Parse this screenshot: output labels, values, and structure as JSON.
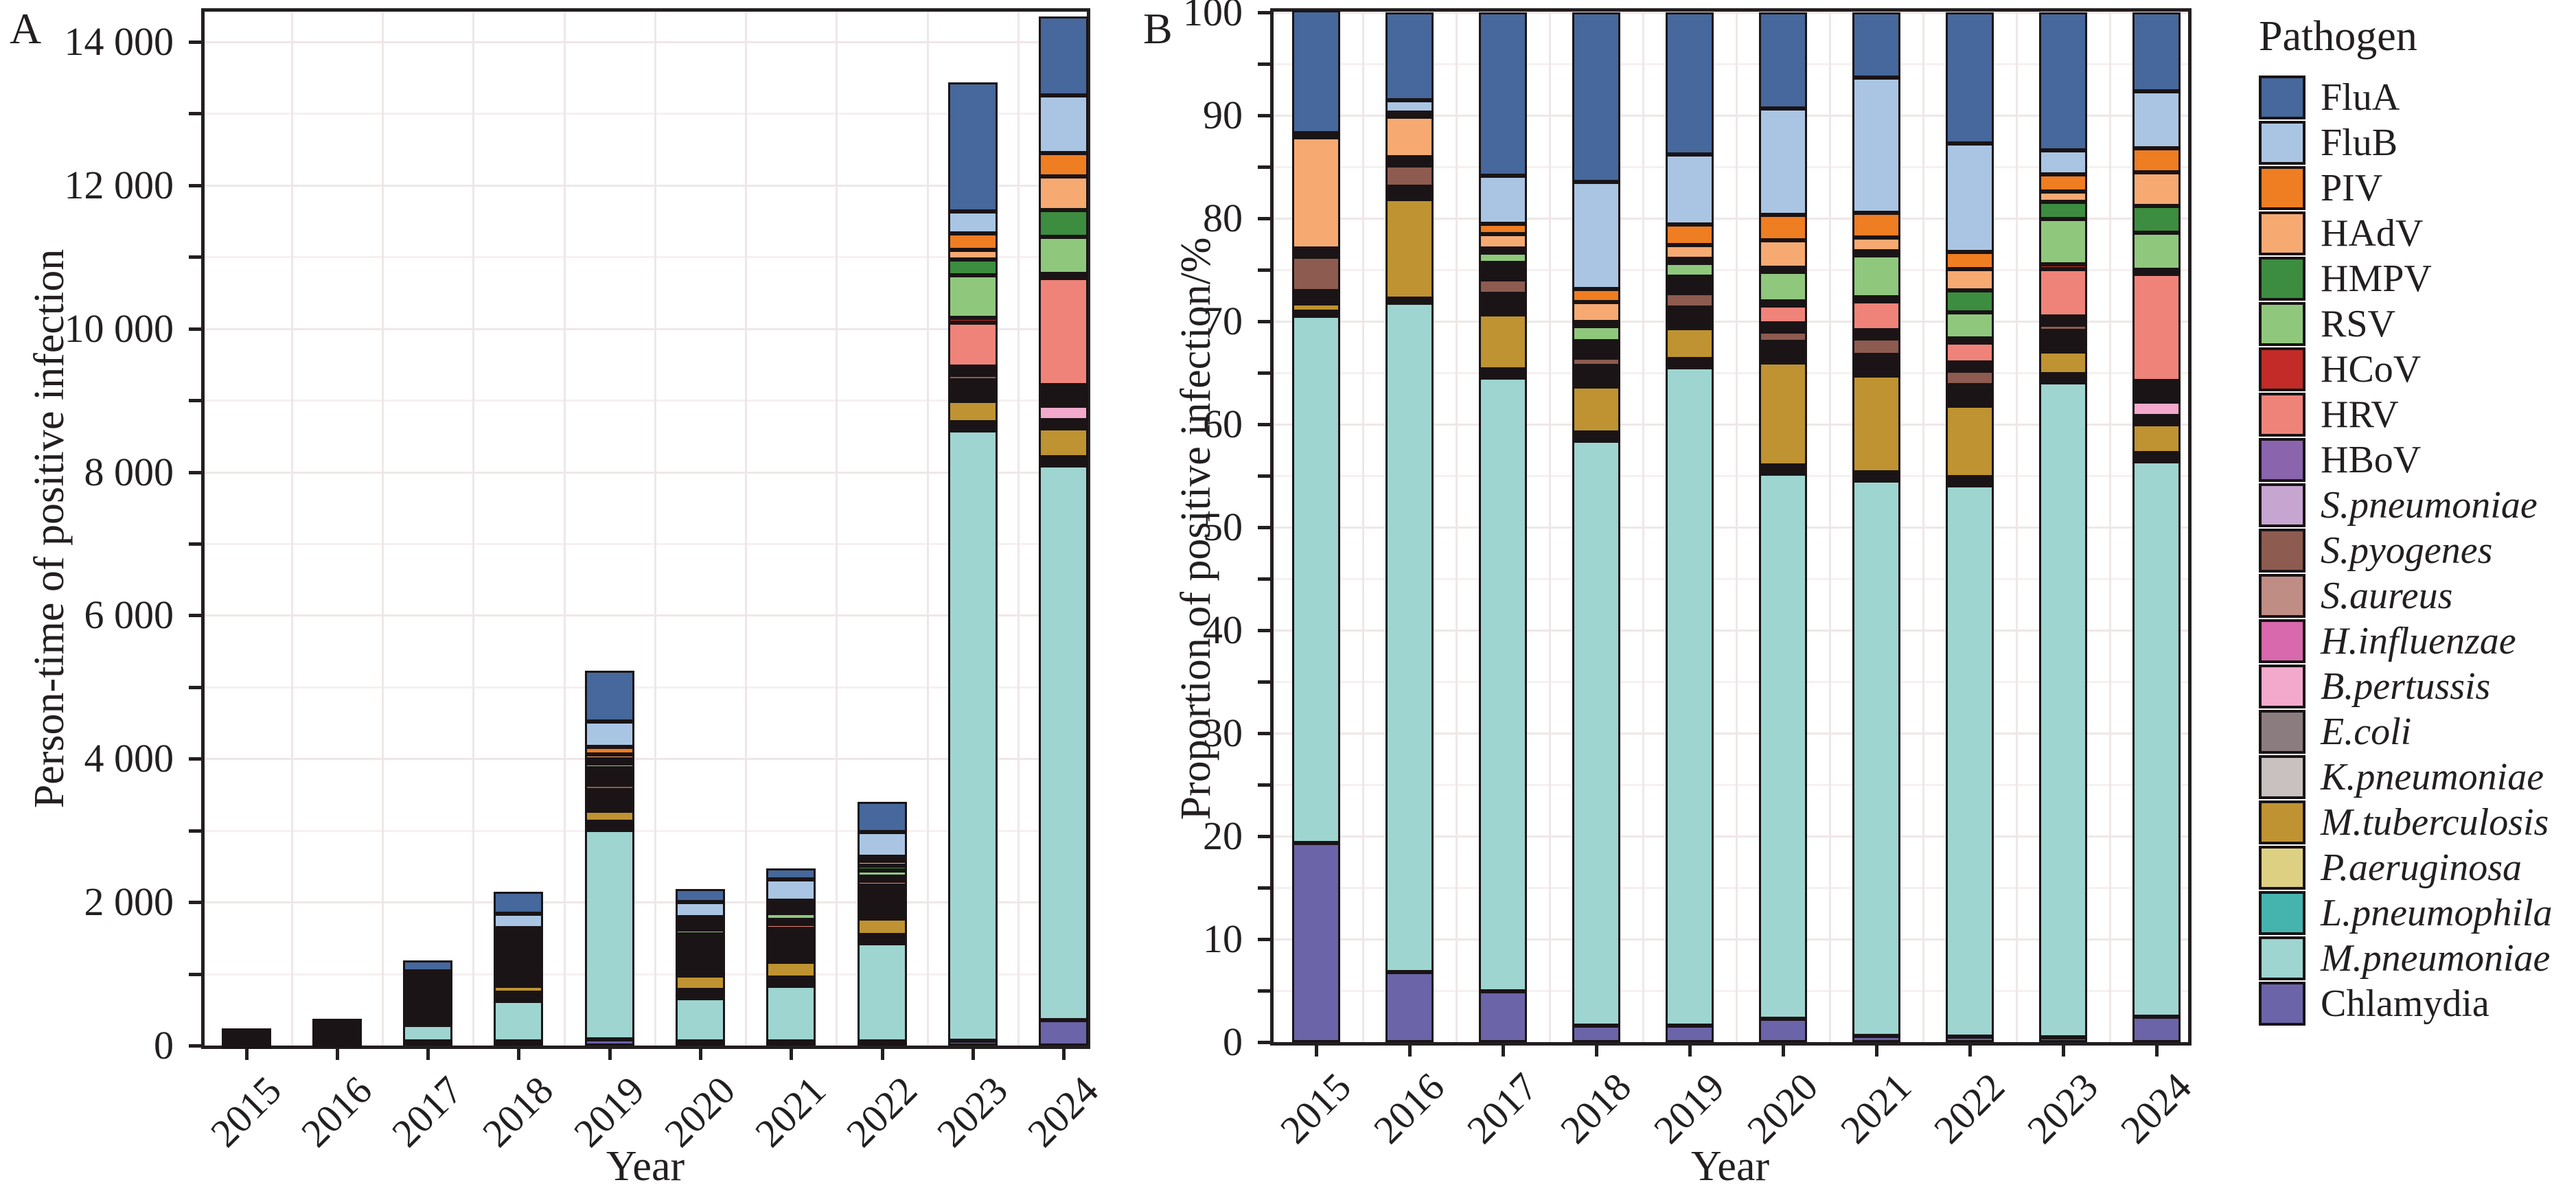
{
  "panels": {
    "a": {
      "label": "A",
      "y_axis_title": "Person-time of positive infection",
      "x_axis_title": "Year",
      "y_tick_labels": [
        "0",
        "2 000",
        "4 000",
        "6 000",
        "8 000",
        "10 000",
        "12 000",
        "14 000"
      ],
      "y_tick_values": [
        0,
        2000,
        4000,
        6000,
        8000,
        10000,
        12000,
        14000
      ]
    },
    "b": {
      "label": "B",
      "y_axis_title": "Proportion of positive infection/%",
      "x_axis_title": "Year",
      "y_tick_labels": [
        "0",
        "10",
        "20",
        "30",
        "40",
        "50",
        "60",
        "70",
        "80",
        "90",
        "100"
      ],
      "y_tick_values": [
        0,
        10,
        20,
        30,
        40,
        50,
        60,
        70,
        80,
        90,
        100
      ]
    }
  },
  "legend": {
    "title": "Pathogen",
    "items": [
      {
        "label": "FluA",
        "color": "#46689c",
        "italic": false
      },
      {
        "label": "FluB",
        "color": "#aac5e3",
        "italic": false
      },
      {
        "label": "PIV",
        "color": "#ef7d22",
        "italic": false
      },
      {
        "label": "HAdV",
        "color": "#f6aa72",
        "italic": false
      },
      {
        "label": "HMPV",
        "color": "#3c8d3f",
        "italic": false
      },
      {
        "label": "RSV",
        "color": "#8fc87d",
        "italic": false
      },
      {
        "label": "HCoV",
        "color": "#c22b27",
        "italic": false
      },
      {
        "label": "HRV",
        "color": "#f08379",
        "italic": false
      },
      {
        "label": "HBoV",
        "color": "#8a64ad",
        "italic": false
      },
      {
        "label": "S.pneumoniae",
        "color": "#c7a5d1",
        "italic": true
      },
      {
        "label": "S.pyogenes",
        "color": "#8d5b50",
        "italic": true
      },
      {
        "label": "S.aureus",
        "color": "#c08d85",
        "italic": true
      },
      {
        "label": "H.influenzae",
        "color": "#d869ac",
        "italic": true
      },
      {
        "label": "B.pertussis",
        "color": "#f3a9cc",
        "italic": true
      },
      {
        "label": "E.coli",
        "color": "#8b7d7f",
        "italic": true
      },
      {
        "label": "K.pneumoniae",
        "color": "#c9c0c0",
        "italic": true
      },
      {
        "label": "M.tuberculosis",
        "color": "#bf9331",
        "italic": true
      },
      {
        "label": "P.aeruginosa",
        "color": "#ded082",
        "italic": true
      },
      {
        "label": "L.pneumophila",
        "color": "#45b4af",
        "italic": true
      },
      {
        "label": "M.pneumoniae",
        "color": "#9ed5d0",
        "italic": true
      },
      {
        "label": "Chlamydia",
        "color": "#6b64a9",
        "italic": false
      }
    ]
  },
  "chart_data": [
    {
      "type": "bar",
      "stacked": true,
      "panel": "A",
      "title": "",
      "xlabel": "Year",
      "ylabel": "Person-time of positive infection",
      "ylim": [
        0,
        14000
      ],
      "grid": true,
      "legend_position": "right",
      "categories": [
        "2015",
        "2016",
        "2017",
        "2018",
        "2019",
        "2020",
        "2021",
        "2022",
        "2023",
        "2024"
      ],
      "series": [
        {
          "name": "FluA",
          "values": [
            13,
            32,
            190,
            357,
            727,
            206,
            158,
            435,
            1814,
            1105
          ]
        },
        {
          "name": "FluB",
          "values": [
            0,
            4,
            56,
            226,
            361,
            228,
            326,
            360,
            309,
            804
          ]
        },
        {
          "name": "PIV",
          "values": [
            0,
            1,
            12,
            28,
            105,
            55,
            59,
            58,
            228,
            330
          ]
        },
        {
          "name": "HAdV",
          "values": [
            11,
            14,
            17,
            41,
            68,
            59,
            35,
            71,
            134,
            474
          ]
        },
        {
          "name": "HMPV",
          "values": [
            0,
            0,
            2,
            6,
            16,
            7,
            7,
            71,
            228,
            373
          ]
        },
        {
          "name": "RSV",
          "values": [
            0,
            1,
            12,
            32,
            73,
            64,
            101,
            88,
            591,
            517
          ]
        },
        {
          "name": "HCoV",
          "values": [
            0,
            0,
            1,
            4,
            10,
            7,
            7,
            10,
            67,
            43
          ]
        },
        {
          "name": "HRV",
          "values": [
            0,
            0,
            2,
            6,
            16,
            37,
            69,
            65,
            618,
            1507
          ]
        },
        {
          "name": "HBoV",
          "values": [
            0,
            0,
            1,
            2,
            5,
            4,
            5,
            10,
            40,
            57
          ]
        },
        {
          "name": "S.pneumoniae",
          "values": [
            0,
            1,
            2,
            4,
            10,
            4,
            5,
            7,
            40,
            29
          ]
        },
        {
          "name": "S.pyogenes",
          "values": [
            4,
            8,
            17,
            17,
            73,
            22,
            40,
            48,
            81,
            43
          ]
        },
        {
          "name": "S.aureus",
          "values": [
            0,
            1,
            2,
            4,
            10,
            4,
            5,
            7,
            27,
            57
          ]
        },
        {
          "name": "H.influenzae",
          "values": [
            0,
            0,
            1,
            2,
            5,
            2,
            2,
            3,
            13,
            14
          ]
        },
        {
          "name": "B.pertussis",
          "values": [
            0,
            0,
            1,
            2,
            5,
            2,
            2,
            3,
            27,
            201
          ]
        },
        {
          "name": "E.coli",
          "values": [
            0,
            1,
            2,
            4,
            10,
            4,
            5,
            7,
            27,
            29
          ]
        },
        {
          "name": "K.pneumoniae",
          "values": [
            0,
            1,
            2,
            4,
            10,
            4,
            5,
            7,
            27,
            29
          ]
        },
        {
          "name": "M.tuberculosis",
          "values": [
            1,
            36,
            64,
            97,
            157,
            221,
            235,
            238,
            296,
            402
          ]
        },
        {
          "name": "P.aeruginosa",
          "values": [
            0,
            1,
            2,
            4,
            10,
            4,
            5,
            7,
            27,
            29
          ]
        },
        {
          "name": "L.pneumophila",
          "values": [
            0,
            0,
            1,
            2,
            5,
            2,
            2,
            3,
            13,
            14
          ]
        },
        {
          "name": "M.pneumoniae",
          "values": [
            55,
            245,
            740,
            1271,
            3468,
            1202,
            1381,
            1884,
            8763,
            7935
          ]
        },
        {
          "name": "Chlamydia",
          "values": [
            21,
            25,
            60,
            34,
            84,
            50,
            15,
            17,
            67,
            359
          ]
        }
      ]
    },
    {
      "type": "bar",
      "stacked": true,
      "panel": "B",
      "title": "",
      "xlabel": "Year",
      "ylabel": "Proportion of positive infection/%",
      "ylim": [
        0,
        100
      ],
      "grid": true,
      "legend_position": "right",
      "categories": [
        "2015",
        "2016",
        "2017",
        "2018",
        "2019",
        "2020",
        "2021",
        "2022",
        "2023",
        "2024"
      ],
      "series": [
        {
          "name": "FluA",
          "values": [
            12.0,
            8.6,
            16.0,
            16.6,
            13.9,
            9.4,
            6.4,
            12.8,
            13.5,
            7.7
          ]
        },
        {
          "name": "FluB",
          "values": [
            0,
            1.2,
            4.7,
            10.5,
            6.9,
            10.4,
            13.2,
            10.6,
            2.3,
            5.6
          ]
        },
        {
          "name": "PIV",
          "values": [
            0.3,
            0.2,
            1.0,
            1.3,
            2.0,
            2.5,
            2.4,
            1.7,
            1.7,
            2.3
          ]
        },
        {
          "name": "HAdV",
          "values": [
            10.8,
            3.9,
            1.4,
            1.9,
            1.3,
            2.7,
            1.4,
            2.1,
            1.0,
            3.3
          ]
        },
        {
          "name": "HMPV",
          "values": [
            0,
            0,
            0.2,
            0.3,
            0.3,
            0.3,
            0.3,
            2.1,
            1.7,
            2.6
          ]
        },
        {
          "name": "RSV",
          "values": [
            0.3,
            0.3,
            1.0,
            1.5,
            1.4,
            2.9,
            4.1,
            2.6,
            4.4,
            3.6
          ]
        },
        {
          "name": "HCoV",
          "values": [
            0,
            0,
            0.1,
            0.2,
            0.2,
            0.3,
            0.3,
            0.3,
            0.5,
            0.3
          ]
        },
        {
          "name": "HRV",
          "values": [
            0,
            0,
            0.2,
            0.3,
            0.3,
            1.7,
            2.8,
            1.9,
            4.6,
            10.5
          ]
        },
        {
          "name": "HBoV",
          "values": [
            0,
            0,
            0.1,
            0.1,
            0.1,
            0.2,
            0.2,
            0.3,
            0.3,
            0.4
          ]
        },
        {
          "name": "S.pneumoniae",
          "values": [
            0.3,
            0.2,
            0.2,
            0.2,
            0.2,
            0.2,
            0.2,
            0.2,
            0.3,
            0.2
          ]
        },
        {
          "name": "S.pyogenes",
          "values": [
            3.4,
            2.1,
            1.4,
            0.8,
            1.4,
            1.0,
            1.6,
            1.4,
            0.6,
            0.3
          ]
        },
        {
          "name": "S.aureus",
          "values": [
            0.2,
            0.2,
            0.2,
            0.2,
            0.2,
            0.2,
            0.2,
            0.2,
            0.2,
            0.4
          ]
        },
        {
          "name": "H.influenzae",
          "values": [
            0,
            0,
            0.1,
            0.1,
            0.1,
            0.1,
            0.1,
            0.1,
            0.1,
            0.1
          ]
        },
        {
          "name": "B.pertussis",
          "values": [
            0,
            0,
            0.1,
            0.1,
            0.1,
            0.1,
            0.1,
            0.1,
            0.2,
            1.4
          ]
        },
        {
          "name": "E.coli",
          "values": [
            0.3,
            0.2,
            0.2,
            0.2,
            0.2,
            0.2,
            0.2,
            0.2,
            0.2,
            0.2
          ]
        },
        {
          "name": "K.pneumoniae",
          "values": [
            0.2,
            0.2,
            0.2,
            0.2,
            0.2,
            0.2,
            0.2,
            0.2,
            0.2,
            0.2
          ]
        },
        {
          "name": "M.tuberculosis",
          "values": [
            0.8,
            9.7,
            5.4,
            4.5,
            3.0,
            10.1,
            9.5,
            7.0,
            2.2,
            2.8
          ]
        },
        {
          "name": "P.aeruginosa",
          "values": [
            0.4,
            0.2,
            0.2,
            0.2,
            0.2,
            0.2,
            0.2,
            0.2,
            0.2,
            0.2
          ]
        },
        {
          "name": "L.pneumophila",
          "values": [
            0,
            0,
            0.1,
            0.1,
            0.1,
            0.1,
            0.1,
            0.1,
            0.1,
            0.1
          ]
        },
        {
          "name": "M.pneumoniae",
          "values": [
            51.8,
            66.2,
            62.2,
            59.1,
            66.3,
            54.9,
            55.9,
            55.4,
            65.2,
            55.3
          ]
        },
        {
          "name": "Chlamydia",
          "values": [
            19.4,
            6.8,
            5.0,
            1.6,
            1.6,
            2.3,
            0.6,
            0.5,
            0.5,
            2.5
          ]
        }
      ]
    }
  ]
}
